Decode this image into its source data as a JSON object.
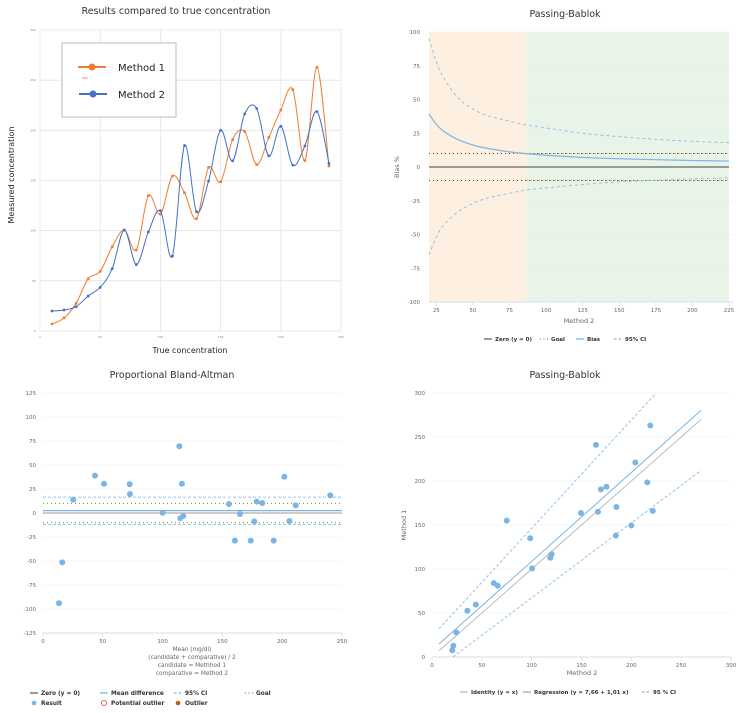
{
  "chart_data": [
    {
      "id": "results",
      "type": "line",
      "title": "Results compared to true concentration",
      "xlabel": "True concentration",
      "ylabel": "Measured concentration",
      "xlim": [
        0,
        250
      ],
      "ylim": [
        0,
        300
      ],
      "xticks": [
        0,
        50,
        100,
        150,
        200,
        250
      ],
      "yticks": [
        0,
        50,
        100,
        150,
        200,
        250,
        300
      ],
      "grid": true,
      "legend_position": "top-left",
      "x": [
        10,
        20,
        30,
        40,
        50,
        60,
        70,
        80,
        90,
        100,
        110,
        120,
        130,
        140,
        150,
        160,
        170,
        180,
        190,
        200,
        210,
        220,
        230,
        240
      ],
      "series": [
        {
          "name": "Method 1",
          "color": "#ed7d31",
          "values": [
            7,
            13,
            27.6,
            52,
            59.5,
            84,
            100.7,
            80.8,
            134.9,
            116.4,
            154.5,
            137.9,
            111.9,
            163,
            148.6,
            190.8,
            198.8,
            165.8,
            192.8,
            220.3,
            240.6,
            169.8,
            262.9,
            164.5
          ]
        },
        {
          "name": "Method 2",
          "color": "#4472c4",
          "values": [
            19.9,
            20.9,
            24.2,
            34.9,
            43.5,
            62.2,
            100.7,
            66.2,
            98.7,
            119.9,
            74.8,
            184.9,
            118.9,
            149.5,
            200,
            169.5,
            216.4,
            221.7,
            174.5,
            204,
            165.3,
            184.5,
            218.8,
            167
          ]
        }
      ]
    },
    {
      "id": "bias",
      "type": "line",
      "title": "Passing-Bablok",
      "xlabel": "Method 2",
      "ylabel": "Bias %",
      "xlim": [
        20,
        225
      ],
      "ylim": [
        -100,
        100
      ],
      "xticks": [
        25,
        50,
        75,
        100,
        125,
        150,
        175,
        200,
        225
      ],
      "yticks": [
        -100,
        -75,
        -50,
        -25,
        0,
        25,
        50,
        75,
        100
      ],
      "grid": true,
      "legend_position": "bottom",
      "bands": [
        {
          "from": 20,
          "to": 86.6,
          "color": "#fdf0e0"
        },
        {
          "from": 86.6,
          "to": 225,
          "color": "#e9f4e8"
        }
      ],
      "zero": 0,
      "goal": [
        10,
        -10
      ],
      "bias_curve": {
        "x": [
          20,
          25,
          30,
          40,
          50,
          60,
          75,
          87,
          100,
          125,
          150,
          175,
          200,
          225
        ],
        "y": [
          39.3,
          31.6,
          26.5,
          20.2,
          16.3,
          13.8,
          11.2,
          9.8,
          8.7,
          7.1,
          6.1,
          5.4,
          4.8,
          4.4
        ]
      },
      "ci_upper": {
        "x": [
          20,
          25,
          30,
          40,
          50,
          60,
          75,
          87,
          100,
          125,
          150,
          175,
          200,
          225
        ],
        "y": [
          95,
          78,
          66,
          51,
          43,
          38,
          34,
          31,
          29,
          25,
          22.5,
          20.5,
          19,
          18
        ]
      },
      "ci_lower": {
        "x": [
          20,
          25,
          30,
          40,
          50,
          60,
          75,
          87,
          100,
          125,
          150,
          175,
          200,
          225
        ],
        "y": [
          -65,
          -52,
          -43,
          -33,
          -27,
          -23,
          -19.5,
          -17,
          -15.5,
          -13,
          -11,
          -9.8,
          -8.8,
          -8
        ]
      },
      "legend": [
        {
          "label": "Zero (y = 0)",
          "style": "solid",
          "color": "#666666"
        },
        {
          "label": "Goal",
          "style": "dotted",
          "color": "#7a9a3a"
        },
        {
          "label": "Bias",
          "style": "solid",
          "color": "#7cb4e4"
        },
        {
          "label": "95% CI",
          "style": "dashed",
          "color": "#7cb4e4"
        }
      ]
    },
    {
      "id": "bland-altman",
      "type": "scatter",
      "title": "Proportional Bland-Altman",
      "xlabel_lines": [
        "Mean (mg/dl)",
        "(candidate + comparative) / 2",
        "candidate = Methhod 1",
        "comparative = Method 2"
      ],
      "ylabel": "",
      "xlim": [
        0,
        250
      ],
      "ylim": [
        -125,
        125
      ],
      "xticks": [
        0,
        50,
        100,
        150,
        200,
        250
      ],
      "yticks": [
        -125,
        -100,
        -75,
        -50,
        -25,
        0,
        25,
        50,
        75,
        100,
        125
      ],
      "grid": true,
      "legend_position": "bottom",
      "zero": 0,
      "mean_difference": 2.5,
      "ci": [
        16.5,
        -12
      ],
      "goal": [
        10,
        -10
      ],
      "points": {
        "x": [
          25.3,
          43.5,
          51,
          72.5,
          72.7,
          114,
          116.2,
          100,
          114.8,
          117.3,
          155.5,
          164.7,
          176.7,
          178.7,
          183.4,
          201.8,
          206,
          211.3,
          240.2,
          160.5,
          173.7,
          192.9,
          16.1,
          13.4
        ],
        "y": [
          13.9,
          38.9,
          30.5,
          29.9,
          19.8,
          69.5,
          30.5,
          0.3,
          -5.5,
          -3.1,
          9.4,
          -1,
          -8.7,
          11.8,
          10.4,
          37.8,
          -8.3,
          8,
          18.4,
          -28.8,
          -28.8,
          -28.8,
          -51.4,
          -94
        ]
      },
      "legend": [
        {
          "label": "Zero (y = 0)",
          "style": "solid",
          "color": "#666666"
        },
        {
          "label": "Mean difference",
          "style": "solid",
          "color": "#7cb4e4"
        },
        {
          "label": "95% CI",
          "style": "dashed",
          "color": "#7cb4e4"
        },
        {
          "label": "Goal",
          "style": "dotted",
          "color": "#7a9a3a"
        },
        {
          "label": "Result",
          "style": "dot",
          "color": "#7cb4e4"
        },
        {
          "label": "Potential outlier",
          "style": "ring",
          "color": "#e05050"
        },
        {
          "label": "Outlier",
          "style": "dot",
          "color": "#c0581a"
        }
      ]
    },
    {
      "id": "regression",
      "type": "scatter",
      "title": "Passing-Bablok",
      "xlabel": "Method 2",
      "ylabel": "Method 1",
      "xlim": [
        0,
        300
      ],
      "ylim": [
        0,
        300
      ],
      "xticks": [
        0,
        50,
        100,
        150,
        200,
        250,
        300
      ],
      "yticks": [
        0,
        50,
        100,
        150,
        200,
        250,
        300
      ],
      "grid": true,
      "legend_position": "bottom",
      "points": {
        "x": [
          75,
          164.5,
          219,
          204,
          169.5,
          175,
          216,
          149.5,
          166.5,
          185,
          221.5,
          200,
          184.5,
          98.5,
          100.5,
          118.7,
          120,
          62,
          66,
          44,
          35.5,
          24.4,
          21.4,
          20.4
        ],
        "y": [
          155,
          241,
          263,
          221,
          190.5,
          193.5,
          198.5,
          163.6,
          165,
          170.5,
          166,
          149.5,
          138,
          135,
          100.7,
          112.8,
          116.7,
          84,
          81,
          59.5,
          52.6,
          28,
          12.8,
          7.6
        ]
      },
      "identity": {
        "x": [
          7,
          270
        ],
        "y": [
          7,
          270
        ]
      },
      "regression": {
        "intercept": 7.66,
        "slope": 1.01,
        "x": [
          7,
          270
        ]
      },
      "ci_upper": {
        "x": [
          7,
          225
        ],
        "y": [
          32,
          300
        ]
      },
      "ci_lower": {
        "x": [
          21,
          270
        ],
        "y": [
          0,
          212
        ]
      },
      "legend": [
        {
          "label": "Identity (y = x)",
          "style": "solid",
          "color": "#bbbbbb"
        },
        {
          "label": "Regression (y = 7,66 + 1,01 x)",
          "style": "solid",
          "color": "#7cb4e4"
        },
        {
          "label": "95 % CI",
          "style": "dashed",
          "color": "#7cb4e4"
        }
      ]
    }
  ]
}
